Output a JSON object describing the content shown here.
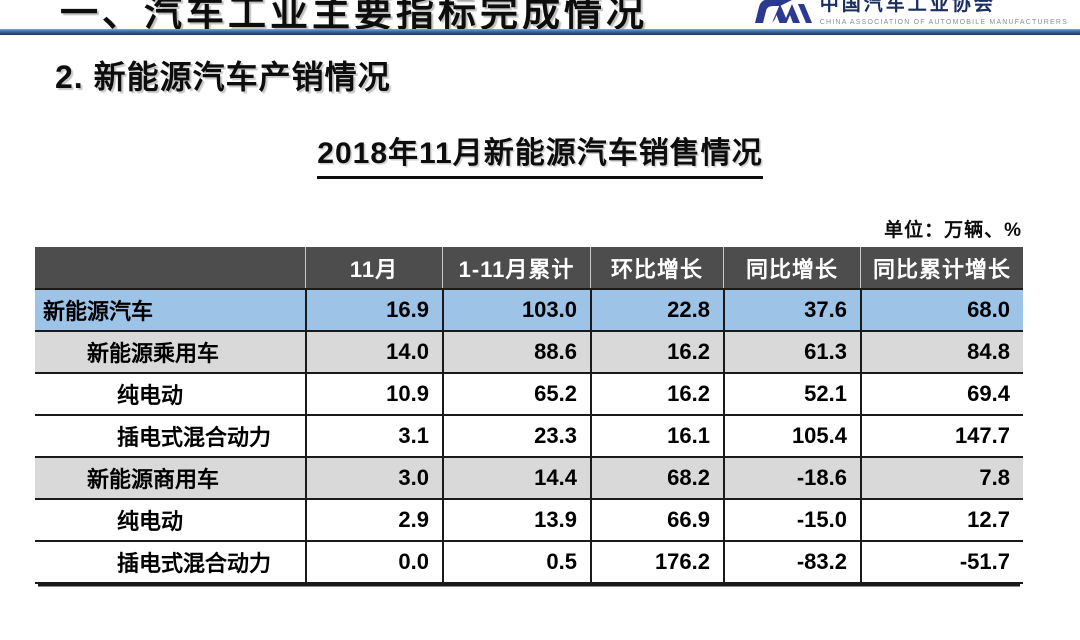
{
  "slide": {
    "top_title": "一、汽车工业主要指标完成情况",
    "section_title": "2. 新能源汽车产销情况",
    "table_title": "2018年11月新能源汽车销售情况",
    "unit_label": "单位：万辆、%"
  },
  "logo": {
    "name_cn": "中国汽车工业协会",
    "name_en": "CHINA ASSOCIATION OF AUTOMOBILE MANUFACTURERS"
  },
  "colors": {
    "highlight_row_blue": "#9DC3E6",
    "alt_row_gray": "#D9D9D9",
    "header_bg": "#4D4D4D",
    "rule_navy": "#17375E",
    "logo_blue": "#2B3990"
  },
  "table": {
    "headers": [
      "",
      "11月",
      "1-11月累计",
      "环比增长",
      "同比增长",
      "同比累计增长"
    ],
    "rows": [
      {
        "label": "新能源汽车",
        "indent": 0,
        "style": "highlight",
        "values": [
          "16.9",
          "103.0",
          "22.8",
          "37.6",
          "68.0"
        ]
      },
      {
        "label": "新能源乘用车",
        "indent": 1,
        "style": "gray",
        "values": [
          "14.0",
          "88.6",
          "16.2",
          "61.3",
          "84.8"
        ]
      },
      {
        "label": "纯电动",
        "indent": 2,
        "style": "white",
        "values": [
          "10.9",
          "65.2",
          "16.2",
          "52.1",
          "69.4"
        ]
      },
      {
        "label": "插电式混合动力",
        "indent": 2,
        "style": "white",
        "values": [
          "3.1",
          "23.3",
          "16.1",
          "105.4",
          "147.7"
        ]
      },
      {
        "label": "新能源商用车",
        "indent": 1,
        "style": "gray",
        "values": [
          "3.0",
          "14.4",
          "68.2",
          "-18.6",
          "7.8"
        ]
      },
      {
        "label": "纯电动",
        "indent": 2,
        "style": "white",
        "values": [
          "2.9",
          "13.9",
          "66.9",
          "-15.0",
          "12.7"
        ]
      },
      {
        "label": "插电式混合动力",
        "indent": 2,
        "style": "white",
        "values": [
          "0.0",
          "0.5",
          "176.2",
          "-83.2",
          "-51.7"
        ]
      }
    ]
  }
}
